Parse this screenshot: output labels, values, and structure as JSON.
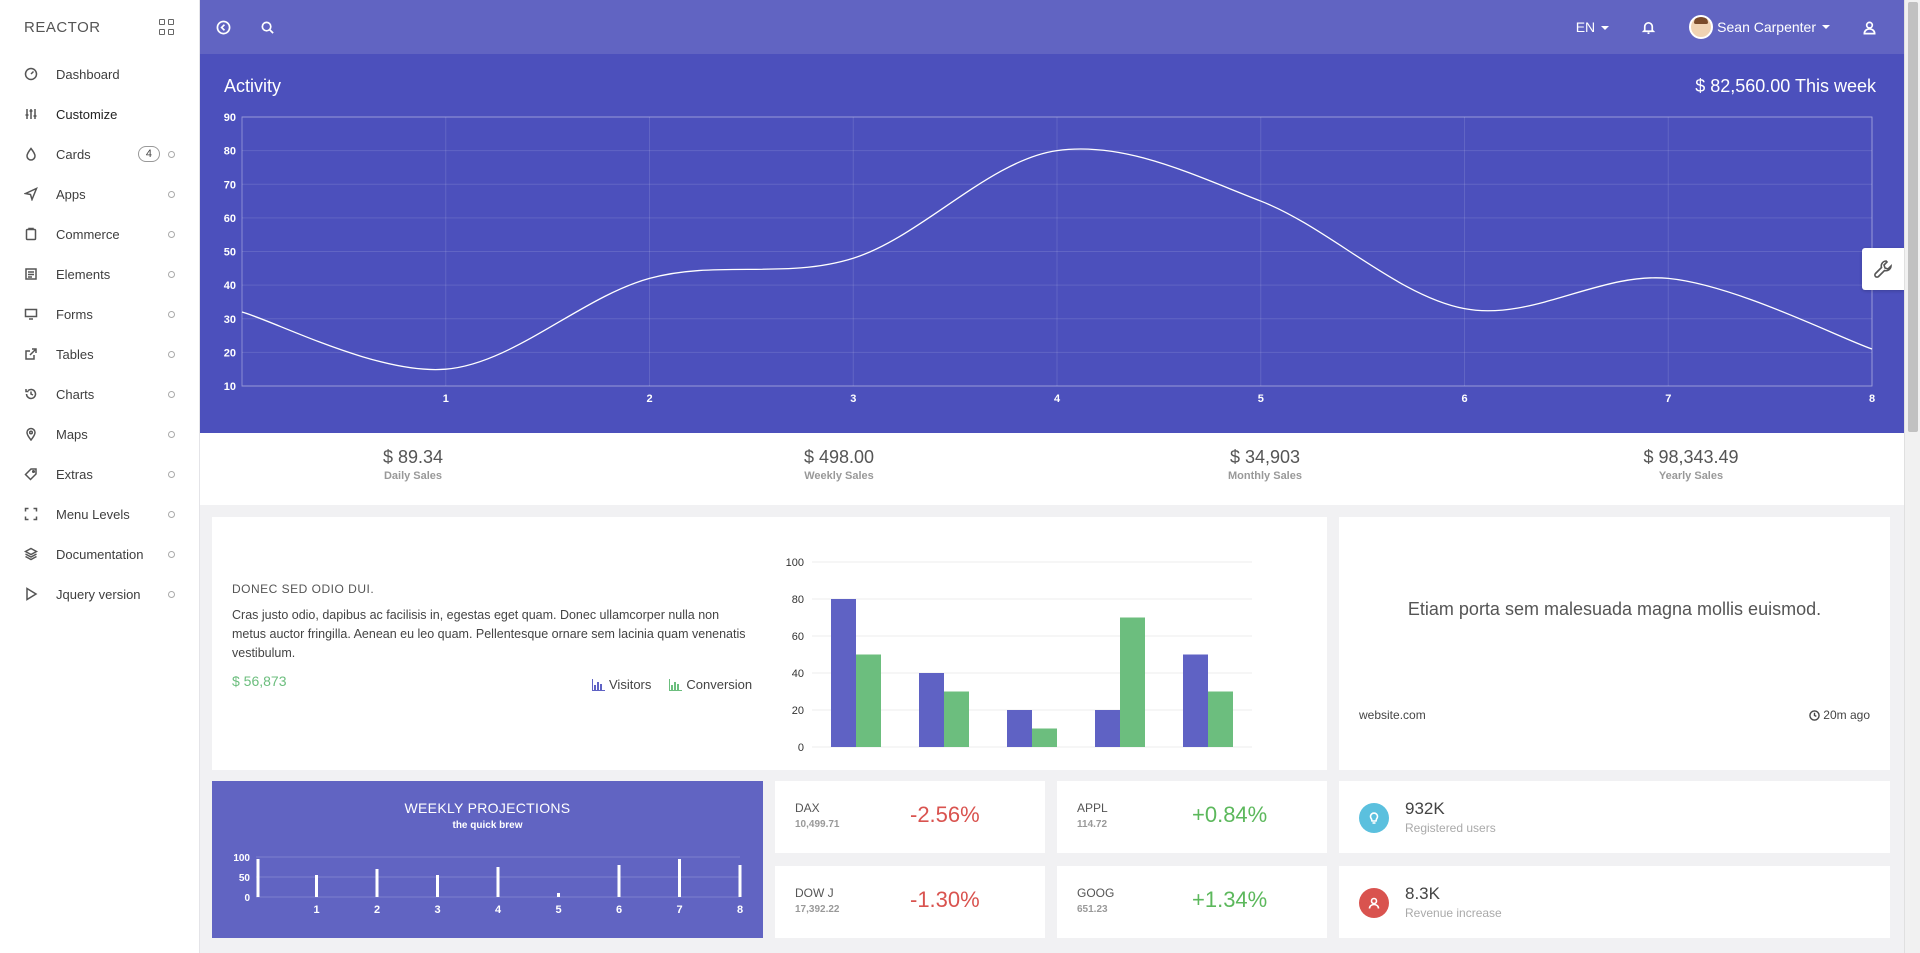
{
  "brand": {
    "name": "REACTOR"
  },
  "sidebar": {
    "items": [
      {
        "label": "Dashboard",
        "icon": "gauge-icon"
      },
      {
        "label": "Customize",
        "icon": "sliders-icon"
      },
      {
        "label": "Cards",
        "icon": "drop-icon",
        "badge": "4"
      },
      {
        "label": "Apps",
        "icon": "paper-plane-icon"
      },
      {
        "label": "Commerce",
        "icon": "clipboard-icon"
      },
      {
        "label": "Elements",
        "icon": "book-icon"
      },
      {
        "label": "Forms",
        "icon": "monitor-icon"
      },
      {
        "label": "Tables",
        "icon": "share-icon"
      },
      {
        "label": "Charts",
        "icon": "history-icon"
      },
      {
        "label": "Maps",
        "icon": "map-pin-icon"
      },
      {
        "label": "Extras",
        "icon": "tag-icon"
      },
      {
        "label": "Menu Levels",
        "icon": "expand-icon"
      },
      {
        "label": "Documentation",
        "icon": "layers-icon"
      },
      {
        "label": "Jquery version",
        "icon": "play-icon"
      }
    ]
  },
  "topbar": {
    "language": "EN",
    "user_name": "Sean Carpenter"
  },
  "activity": {
    "title": "Activity",
    "week_total": "$ 82,560.00 This week"
  },
  "stats": [
    {
      "value": "$ 89.34",
      "label": "Daily Sales"
    },
    {
      "value": "$ 498.00",
      "label": "Weekly Sales"
    },
    {
      "value": "$ 34,903",
      "label": "Monthly Sales"
    },
    {
      "value": "$ 98,343.49",
      "label": "Yearly Sales"
    }
  ],
  "promo": {
    "heading": "DONEC SED ODIO DUI.",
    "body": "Cras justo odio, dapibus ac facilisis in, egestas eget quam. Donec ullamcorper nulla non metus auctor fringilla. Aenean eu leo quam. Pellentesque ornare sem lacinia quam venenatis vestibulum.",
    "price": "$ 56,873",
    "legend_visitors": "Visitors",
    "legend_conversion": "Conversion"
  },
  "quote": {
    "text": "Etiam porta sem malesuada magna mollis euismod.",
    "site": "website.com",
    "time": "20m ago"
  },
  "weekly": {
    "title": "WEEKLY PROJECTIONS",
    "subtitle": "the quick brew"
  },
  "tickers": [
    {
      "name": "DAX",
      "value": "10,499.71",
      "change": "-2.56%",
      "direction": "down"
    },
    {
      "name": "APPL",
      "value": "114.72",
      "change": "+0.84%",
      "direction": "up"
    },
    {
      "name": "DOW J",
      "value": "17,392.22",
      "change": "-1.30%",
      "direction": "down"
    },
    {
      "name": "GOOG",
      "value": "651.23",
      "change": "+1.34%",
      "direction": "up"
    }
  ],
  "metrics": [
    {
      "value": "932K",
      "label": "Registered users",
      "icon": "lightbulb-icon",
      "color": "#5bc0de"
    },
    {
      "value": "8.3K",
      "label": "Revenue increase",
      "icon": "user-icon",
      "color": "#d9534f"
    }
  ],
  "colors": {
    "accent": "#6164c2",
    "activity_bg": "#4c50bc",
    "visitors": "#5f62c4",
    "conversion": "#6cbe7e"
  },
  "chart_data": [
    {
      "type": "line",
      "x": [
        0,
        1,
        2,
        3,
        4,
        5,
        6,
        7,
        8
      ],
      "x_ticks": [
        "",
        "1",
        "2",
        "3",
        "4",
        "5",
        "6",
        "7",
        "8"
      ],
      "series": [
        {
          "values": [
            32,
            15,
            42,
            48,
            80,
            65,
            33,
            42,
            21
          ]
        }
      ],
      "ylim": [
        10,
        90
      ],
      "y_ticks": [
        10,
        20,
        30,
        40,
        50,
        60,
        70,
        80,
        90
      ],
      "grid": true
    },
    {
      "type": "bar",
      "categories": [
        "",
        "",
        "",
        "",
        ""
      ],
      "series": [
        {
          "name": "Visitors",
          "values": [
            80,
            40,
            20,
            20,
            50
          ]
        },
        {
          "name": "Conversion",
          "values": [
            50,
            30,
            10,
            70,
            30
          ]
        }
      ],
      "ylim": [
        0,
        100
      ],
      "y_ticks": [
        0,
        20,
        40,
        60,
        80,
        100
      ],
      "grid": true,
      "legend": "bottom-left"
    },
    {
      "type": "bar",
      "categories": [
        "",
        "1",
        "2",
        "3",
        "4",
        "5",
        "6",
        "7",
        "8"
      ],
      "values": [
        95,
        55,
        70,
        55,
        75,
        10,
        80,
        95,
        80
      ],
      "ylim": [
        0,
        100
      ],
      "y_ticks": [
        0,
        50,
        100
      ],
      "grid": true
    }
  ]
}
